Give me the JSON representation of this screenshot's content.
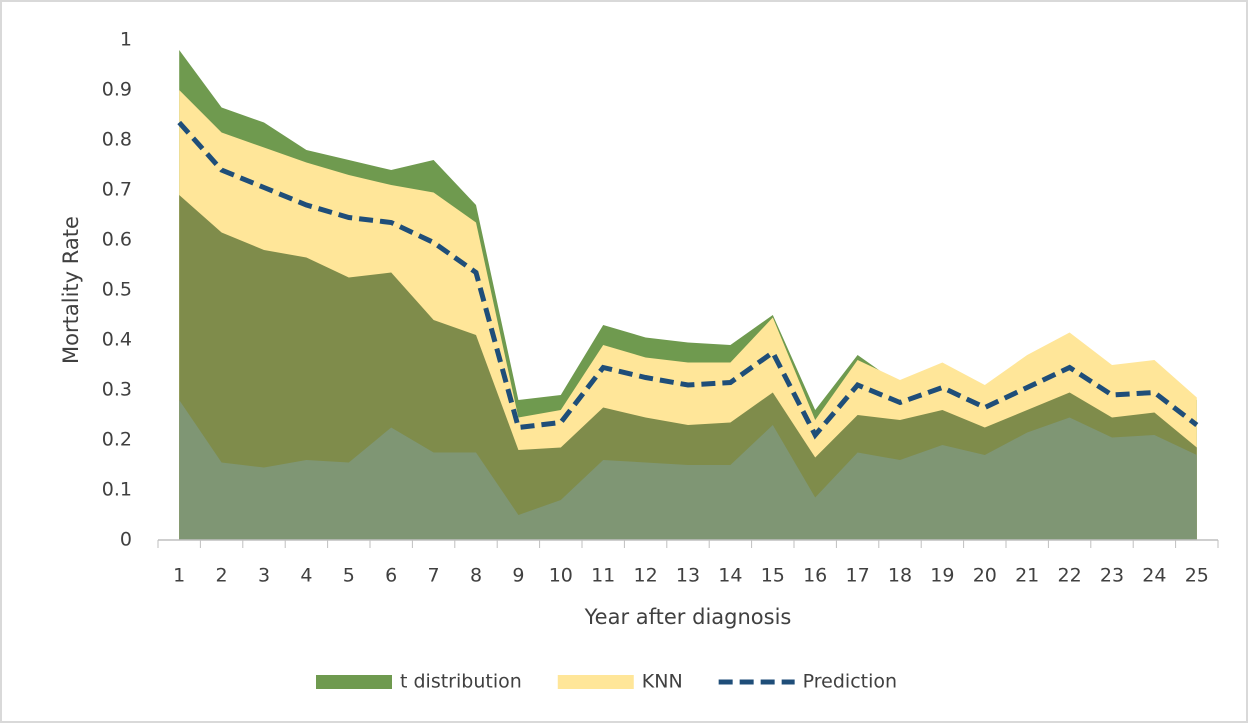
{
  "chart_data": {
    "type": "area",
    "x_label": "Year after diagnosis",
    "y_label": "Mortality Rate",
    "categories": [
      "1",
      "2",
      "3",
      "4",
      "5",
      "6",
      "7",
      "8",
      "9",
      "10",
      "11",
      "12",
      "13",
      "14",
      "15",
      "16",
      "17",
      "18",
      "19",
      "20",
      "21",
      "22",
      "23",
      "24",
      "25"
    ],
    "ylim": [
      0,
      1
    ],
    "yticks": [
      0,
      0.1,
      0.2,
      0.3,
      0.4,
      0.5,
      0.6,
      0.7,
      0.8,
      0.9,
      1
    ],
    "series": [
      {
        "name": "t distribution",
        "color": "#6f9a4f",
        "values": [
          0.98,
          0.865,
          0.835,
          0.78,
          0.76,
          0.74,
          0.76,
          0.67,
          0.28,
          0.29,
          0.43,
          0.405,
          0.395,
          0.39,
          0.45,
          0.26,
          0.37,
          0.31,
          0.35,
          0.3,
          0.36,
          0.41,
          0.34,
          0.35,
          0.28
        ]
      },
      {
        "name": "KNN",
        "color": "#ffe699",
        "values": [
          0.9,
          0.815,
          0.785,
          0.755,
          0.73,
          0.71,
          0.695,
          0.635,
          0.245,
          0.26,
          0.39,
          0.365,
          0.355,
          0.355,
          0.445,
          0.24,
          0.36,
          0.32,
          0.355,
          0.31,
          0.37,
          0.415,
          0.35,
          0.36,
          0.285
        ]
      },
      {
        "color": "#7f8c4b",
        "values": [
          0.69,
          0.615,
          0.58,
          0.565,
          0.525,
          0.535,
          0.44,
          0.41,
          0.18,
          0.185,
          0.265,
          0.245,
          0.23,
          0.235,
          0.295,
          0.165,
          0.25,
          0.24,
          0.26,
          0.225,
          0.26,
          0.295,
          0.245,
          0.255,
          0.185
        ]
      },
      {
        "color": "#7f9674",
        "values": [
          0.28,
          0.155,
          0.145,
          0.16,
          0.155,
          0.225,
          0.175,
          0.175,
          0.05,
          0.08,
          0.16,
          0.155,
          0.15,
          0.15,
          0.23,
          0.085,
          0.175,
          0.16,
          0.19,
          0.17,
          0.215,
          0.245,
          0.205,
          0.21,
          0.17
        ]
      },
      {
        "name": "Prediction",
        "color": "#1f4e79",
        "line": "dashed",
        "values": [
          0.835,
          0.74,
          0.705,
          0.67,
          0.645,
          0.635,
          0.595,
          0.535,
          0.225,
          0.235,
          0.345,
          0.325,
          0.31,
          0.315,
          0.375,
          0.21,
          0.31,
          0.275,
          0.305,
          0.265,
          0.305,
          0.345,
          0.29,
          0.295,
          0.23
        ]
      }
    ]
  }
}
